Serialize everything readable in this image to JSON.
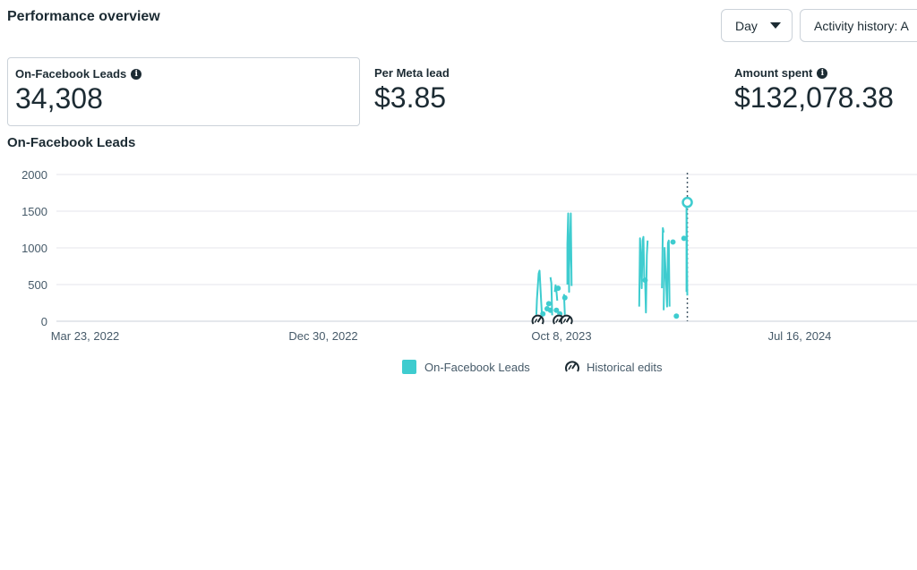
{
  "header": {
    "title": "Performance overview",
    "day_button": "Day",
    "history_button": "Activity history: A"
  },
  "metrics": [
    {
      "label": "On-Facebook Leads",
      "value": "34,308",
      "has_info": true,
      "selected": true
    },
    {
      "label": "Per Meta lead",
      "value": "$3.85",
      "has_info": false,
      "selected": false
    },
    {
      "label": "Amount spent",
      "value": "$132,078.38",
      "has_info": true,
      "selected": false
    }
  ],
  "chart_title": "On-Facebook Leads",
  "colors": {
    "series": "#3ecccf",
    "text": "#1c2b33",
    "grid": "#e4e6eb",
    "axis_text": "#465a69"
  },
  "legend": {
    "series_label": "On-Facebook Leads",
    "edits_label": "Historical edits"
  },
  "chart_data": {
    "type": "line",
    "title": "On-Facebook Leads",
    "xlabel": "",
    "ylabel": "",
    "ylim": [
      0,
      2000
    ],
    "y_ticks": [
      0,
      500,
      1000,
      1500,
      2000
    ],
    "x_tick_labels": [
      "Mar 23, 2022",
      "Dec 30, 2022",
      "Oct 8, 2023",
      "Jul 16, 2024"
    ],
    "x_tick_dates": [
      "2022-03-23",
      "2022-12-30",
      "2023-10-08",
      "2024-07-16"
    ],
    "grid": true,
    "legend_position": "bottom",
    "series": [
      {
        "name": "On-Facebook Leads",
        "segments": [
          [
            [
              "2023-09-08",
              10
            ],
            [
              "2023-09-09",
              300
            ],
            [
              "2023-09-11",
              650
            ],
            [
              "2023-09-12",
              690
            ],
            [
              "2023-09-14",
              250
            ],
            [
              "2023-09-15",
              60
            ]
          ],
          [
            [
              "2023-09-25",
              600
            ],
            [
              "2023-09-26",
              520
            ],
            [
              "2023-09-27",
              80
            ]
          ],
          [
            [
              "2023-09-30",
              400
            ],
            [
              "2023-10-01",
              490
            ],
            [
              "2023-10-02",
              420
            ],
            [
              "2023-10-03",
              280
            ]
          ],
          [
            [
              "2023-10-11",
              370
            ],
            [
              "2023-10-12",
              80
            ]
          ],
          [
            [
              "2023-10-15",
              500
            ],
            [
              "2023-10-15",
              1050
            ],
            [
              "2023-10-16",
              1470
            ],
            [
              "2023-10-17",
              400
            ],
            [
              "2023-10-17",
              700
            ],
            [
              "2023-10-18",
              980
            ],
            [
              "2023-10-19",
              1470
            ],
            [
              "2023-10-20",
              480
            ]
          ],
          [
            [
              "2024-01-08",
              200
            ],
            [
              "2024-01-09",
              1130
            ],
            [
              "2024-01-10",
              830
            ],
            [
              "2024-01-11",
              450
            ],
            [
              "2024-01-12",
              1100
            ],
            [
              "2024-01-13",
              1150
            ],
            [
              "2024-01-14",
              590
            ],
            [
              "2024-01-15",
              560
            ],
            [
              "2024-01-16",
              120
            ],
            [
              "2024-01-17",
              900
            ],
            [
              "2024-01-18",
              1100
            ]
          ],
          [
            [
              "2024-02-04",
              450
            ],
            [
              "2024-02-05",
              1270
            ],
            [
              "2024-02-06",
              1210
            ]
          ],
          [
            [
              "2024-02-06",
              150
            ],
            [
              "2024-02-07",
              1000
            ],
            [
              "2024-02-08",
              750
            ],
            [
              "2024-02-09",
              500
            ],
            [
              "2024-02-10",
              200
            ],
            [
              "2024-02-11",
              1070
            ],
            [
              "2024-02-12",
              1100
            ],
            [
              "2024-02-13",
              200
            ]
          ],
          [
            [
              "2024-02-17",
              1080
            ]
          ],
          [
            [
              "2024-03-01",
              1130
            ],
            [
              "2024-03-02",
              1140
            ]
          ],
          [
            [
              "2024-03-04",
              400
            ],
            [
              "2024-03-04",
              1640
            ],
            [
              "2024-03-05",
              350
            ]
          ]
        ],
        "points": [
          [
            "2023-09-16",
            100
          ],
          [
            "2023-09-21",
            170
          ],
          [
            "2023-09-23",
            240
          ],
          [
            "2023-09-25",
            150
          ],
          [
            "2023-10-02",
            150
          ],
          [
            "2023-10-04",
            450
          ],
          [
            "2023-10-06",
            100
          ],
          [
            "2023-10-12",
            320
          ],
          [
            "2024-01-15",
            560
          ],
          [
            "2024-02-21",
            70
          ],
          [
            "2024-03-01",
            1130
          ]
        ],
        "highlight": [
          "2024-03-05",
          1620
        ]
      }
    ],
    "historical_edits": [
      "2023-09-10",
      "2023-10-05",
      "2023-10-14"
    ],
    "marker_date": "2024-03-05"
  }
}
